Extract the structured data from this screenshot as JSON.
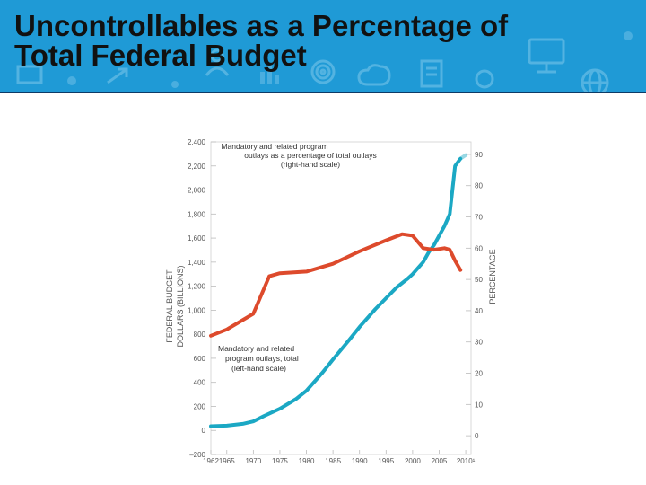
{
  "slide": {
    "title_line1": "Uncontrollables as a Percentage of",
    "title_line2": "Total Federal Budget"
  },
  "colors": {
    "banner": "#1f9ad6",
    "total_series": "#1ba8c4",
    "percent_series": "#dd4a2c"
  },
  "chart_data": {
    "type": "line",
    "dual_axis": true,
    "x_ticks": [
      "1962",
      "1965",
      "1970",
      "1975",
      "1980",
      "1985",
      "1990",
      "1995",
      "2000",
      "2005",
      "2010¹"
    ],
    "xlim": [
      1962,
      2011
    ],
    "y_left": {
      "label_line1": "FEDERAL BUDGET",
      "label_line2": "DOLLARS (BILLIONS)",
      "ticks": [
        "2,400",
        "2,200",
        "2,000",
        "1,800",
        "1,600",
        "1,400",
        "1,200",
        "1,000",
        "800",
        "600",
        "400",
        "200",
        "0",
        "–200"
      ],
      "tick_values": [
        2400,
        2200,
        2000,
        1800,
        1600,
        1400,
        1200,
        1000,
        800,
        600,
        400,
        200,
        0,
        -200
      ],
      "range": [
        -200,
        2400
      ]
    },
    "y_right": {
      "label": "PERCENTAGE",
      "ticks": [
        "90",
        "80",
        "70",
        "60",
        "50",
        "40",
        "30",
        "20",
        "10",
        "0"
      ],
      "tick_values": [
        90,
        80,
        70,
        60,
        50,
        40,
        30,
        20,
        10,
        0
      ],
      "range": [
        -6,
        94
      ]
    },
    "annotations": {
      "percent_line1": "Mandatory and related program",
      "percent_line2": "outlays as a percentage of total outlays",
      "percent_line3": "(right-hand scale)",
      "total_line1": "Mandatory and related",
      "total_line2": "program outlays, total",
      "total_line3": "(left-hand scale)"
    },
    "series": [
      {
        "name": "Mandatory and related program outlays, total (left-hand scale)",
        "axis": "left",
        "color": "#1ba8c4",
        "x": [
          1962,
          1965,
          1968,
          1970,
          1972,
          1975,
          1978,
          1980,
          1983,
          1985,
          1988,
          1990,
          1993,
          1995,
          1997,
          1999,
          2000,
          2002,
          2003,
          2004,
          2005,
          2006,
          2007,
          2008,
          2009
        ],
        "values": [
          35,
          40,
          55,
          75,
          120,
          180,
          260,
          330,
          480,
          590,
          750,
          860,
          1010,
          1100,
          1190,
          1260,
          1300,
          1400,
          1480,
          1540,
          1620,
          1700,
          1800,
          2200,
          2260
        ],
        "projected_x": [
          2009,
          2010
        ],
        "projected_values": [
          2260,
          2290
        ]
      },
      {
        "name": "Mandatory and related program outlays as a percentage of total outlays (right-hand scale)",
        "axis": "right",
        "color": "#dd4a2c",
        "x": [
          1962,
          1965,
          1970,
          1973,
          1975,
          1980,
          1985,
          1990,
          1995,
          1998,
          2000,
          2002,
          2004,
          2006,
          2007,
          2008,
          2009
        ],
        "values": [
          32,
          34,
          39,
          51,
          52,
          52.5,
          55,
          59,
          62.5,
          64.5,
          64,
          60,
          59.5,
          60,
          59.5,
          56,
          53
        ]
      }
    ]
  }
}
